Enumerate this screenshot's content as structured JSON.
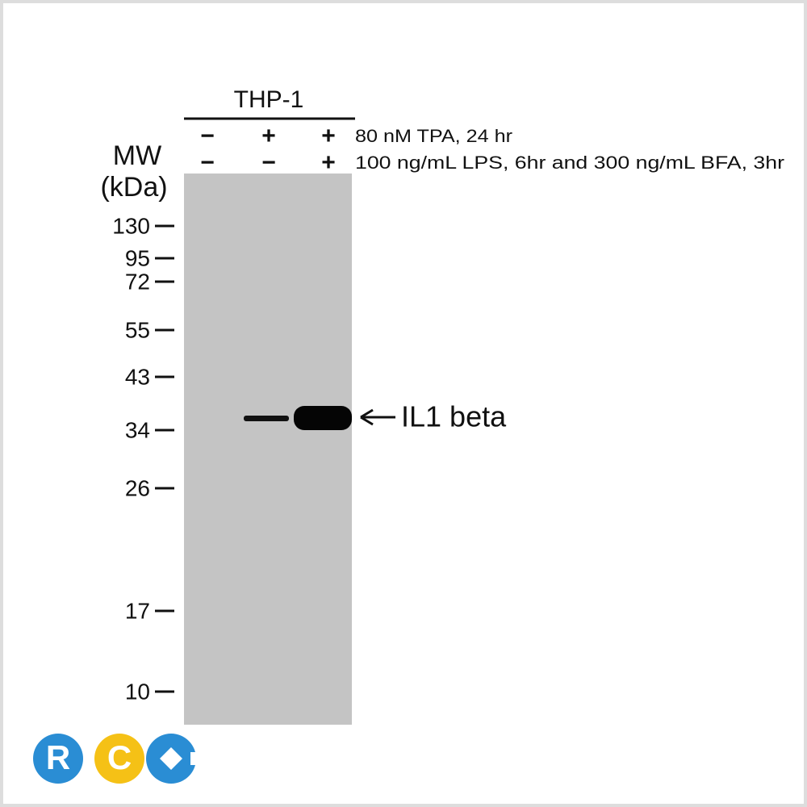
{
  "header": {
    "cell_line": "THP-1"
  },
  "treatments": [
    {
      "label": "80 nM TPA, 24 hr",
      "lanes": [
        "−",
        "+",
        "+"
      ]
    },
    {
      "label": "100 ng/mL LPS, 6hr and 300 ng/mL BFA, 3hr",
      "lanes": [
        "−",
        "−",
        "+"
      ]
    }
  ],
  "mw_axis": {
    "title": "MW",
    "unit": "(kDa)",
    "markers": [
      "130",
      "95",
      "72",
      "55",
      "43",
      "34",
      "26",
      "17",
      "10"
    ]
  },
  "band": {
    "label": "IL1 beta"
  },
  "logo": {
    "letters": [
      "R",
      "C"
    ]
  }
}
